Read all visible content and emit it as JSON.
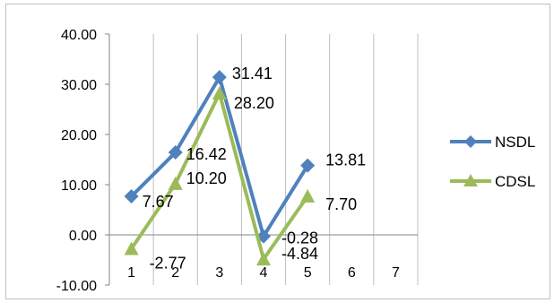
{
  "chart_data": {
    "type": "line",
    "x": [
      1,
      2,
      3,
      4,
      5,
      6,
      7
    ],
    "xtick_labels": [
      "1",
      "2",
      "3",
      "4",
      "5",
      "6",
      "7"
    ],
    "ylim": [
      -10,
      40
    ],
    "yticks": [
      -10,
      0,
      10,
      20,
      30,
      40
    ],
    "ytick_labels": [
      "-10.00",
      "0.00",
      "10.00",
      "20.00",
      "30.00",
      "40.00"
    ],
    "grid": "vertical",
    "legend_position": "right",
    "series": [
      {
        "name": "NSDL",
        "color": "#4f81bd",
        "marker": "diamond",
        "x": [
          1,
          2,
          3,
          4,
          5
        ],
        "values": [
          7.67,
          16.42,
          31.41,
          -0.28,
          13.81
        ],
        "labels": [
          "7.67",
          "16.42",
          "31.41",
          "-0.28",
          "13.81"
        ]
      },
      {
        "name": "CDSL",
        "color": "#9bbb59",
        "marker": "triangle",
        "x": [
          1,
          2,
          3,
          4,
          5
        ],
        "values": [
          -2.77,
          10.2,
          28.2,
          -4.84,
          7.7
        ],
        "labels": [
          "-2.77",
          "10.20",
          "28.20",
          "-4.84",
          "7.70"
        ]
      }
    ]
  }
}
